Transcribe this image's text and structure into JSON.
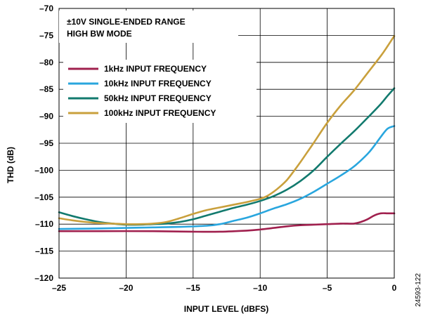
{
  "chart_data": {
    "type": "line",
    "xlabel": "INPUT LEVEL (dBFS)",
    "ylabel": "THD (dB)",
    "xlim": [
      -25,
      0
    ],
    "ylim": [
      -120,
      -70
    ],
    "xticks": [
      -25,
      -20,
      -15,
      -10,
      -5,
      0
    ],
    "yticks": [
      -120,
      -115,
      -110,
      -105,
      -100,
      -95,
      -90,
      -85,
      -80,
      -75,
      -70
    ],
    "xtick_labels": [
      "–25",
      "–20",
      "–15",
      "–10",
      "–5",
      "0"
    ],
    "ytick_labels": [
      "–120",
      "–115",
      "–110",
      "–105",
      "–100",
      "–95",
      "–90",
      "–85",
      "–80",
      "–75",
      "–70"
    ],
    "grid": true,
    "annotation": [
      "±10V SINGLE-ENDED RANGE",
      "HIGH BW MODE"
    ],
    "figure_id": "24593-122",
    "series": [
      {
        "name": "1kHz INPUT FREQUENCY",
        "color": "#A0204E",
        "points": [
          [
            -25,
            -111.3
          ],
          [
            -22,
            -111.3
          ],
          [
            -18,
            -111.3
          ],
          [
            -15,
            -111.4
          ],
          [
            -13,
            -111.4
          ],
          [
            -11,
            -111.2
          ],
          [
            -10,
            -111.0
          ],
          [
            -9,
            -110.7
          ],
          [
            -8,
            -110.4
          ],
          [
            -7,
            -110.2
          ],
          [
            -6,
            -110.1
          ],
          [
            -5,
            -110.0
          ],
          [
            -4,
            -109.9
          ],
          [
            -3.5,
            -109.9
          ],
          [
            -3,
            -109.9
          ],
          [
            -2.5,
            -109.6
          ],
          [
            -2,
            -109.1
          ],
          [
            -1.5,
            -108.4
          ],
          [
            -1,
            -108.0
          ],
          [
            -0.5,
            -108.0
          ],
          [
            0,
            -108.0
          ]
        ]
      },
      {
        "name": "10kHz INPUT FREQUENCY",
        "color": "#29A6DE",
        "points": [
          [
            -25,
            -110.9
          ],
          [
            -22,
            -110.8
          ],
          [
            -20,
            -110.7
          ],
          [
            -18,
            -110.6
          ],
          [
            -16,
            -110.5
          ],
          [
            -14,
            -110.3
          ],
          [
            -13,
            -110.0
          ],
          [
            -12,
            -109.4
          ],
          [
            -11,
            -108.8
          ],
          [
            -10,
            -108.0
          ],
          [
            -9,
            -107.1
          ],
          [
            -8,
            -106.3
          ],
          [
            -7,
            -105.3
          ],
          [
            -6,
            -104.0
          ],
          [
            -5,
            -102.5
          ],
          [
            -4,
            -101.0
          ],
          [
            -3,
            -99.3
          ],
          [
            -2,
            -97.0
          ],
          [
            -1.5,
            -95.5
          ],
          [
            -1,
            -93.8
          ],
          [
            -0.5,
            -92.3
          ],
          [
            0,
            -91.8
          ]
        ]
      },
      {
        "name": "50kHz INPUT FREQUENCY",
        "color": "#127A6E",
        "points": [
          [
            -25,
            -107.8
          ],
          [
            -24,
            -108.5
          ],
          [
            -23,
            -109.1
          ],
          [
            -22,
            -109.6
          ],
          [
            -21,
            -109.9
          ],
          [
            -20,
            -110.1
          ],
          [
            -19,
            -110.1
          ],
          [
            -18,
            -110.0
          ],
          [
            -17,
            -109.9
          ],
          [
            -16,
            -109.6
          ],
          [
            -15,
            -109.1
          ],
          [
            -14,
            -108.4
          ],
          [
            -13,
            -107.7
          ],
          [
            -12,
            -107.0
          ],
          [
            -11,
            -106.4
          ],
          [
            -10,
            -105.7
          ],
          [
            -9,
            -104.8
          ],
          [
            -8,
            -103.6
          ],
          [
            -7,
            -102.0
          ],
          [
            -6,
            -100.0
          ],
          [
            -5,
            -97.5
          ],
          [
            -4,
            -95.1
          ],
          [
            -3,
            -92.8
          ],
          [
            -2,
            -90.3
          ],
          [
            -1,
            -87.7
          ],
          [
            -0.5,
            -86.2
          ],
          [
            0,
            -84.8
          ]
        ]
      },
      {
        "name": "100kHz INPUT FREQUENCY",
        "color": "#C9A03C",
        "points": [
          [
            -25,
            -108.9
          ],
          [
            -24,
            -109.3
          ],
          [
            -23,
            -109.6
          ],
          [
            -22,
            -109.8
          ],
          [
            -21,
            -109.9
          ],
          [
            -20,
            -110.0
          ],
          [
            -19,
            -110.0
          ],
          [
            -18,
            -109.9
          ],
          [
            -17,
            -109.6
          ],
          [
            -16,
            -108.9
          ],
          [
            -15,
            -108.1
          ],
          [
            -14,
            -107.4
          ],
          [
            -13,
            -106.9
          ],
          [
            -12,
            -106.4
          ],
          [
            -11,
            -105.9
          ],
          [
            -10,
            -105.3
          ],
          [
            -9.5,
            -104.8
          ],
          [
            -9,
            -104.0
          ],
          [
            -8.5,
            -103.0
          ],
          [
            -8,
            -101.8
          ],
          [
            -7.5,
            -100.2
          ],
          [
            -7,
            -98.5
          ],
          [
            -6.5,
            -96.7
          ],
          [
            -6,
            -94.9
          ],
          [
            -5,
            -91.2
          ],
          [
            -4,
            -88.0
          ],
          [
            -3,
            -85.2
          ],
          [
            -2,
            -82.0
          ],
          [
            -1,
            -78.8
          ],
          [
            -0.5,
            -77.0
          ],
          [
            0,
            -75.1
          ]
        ]
      }
    ]
  }
}
